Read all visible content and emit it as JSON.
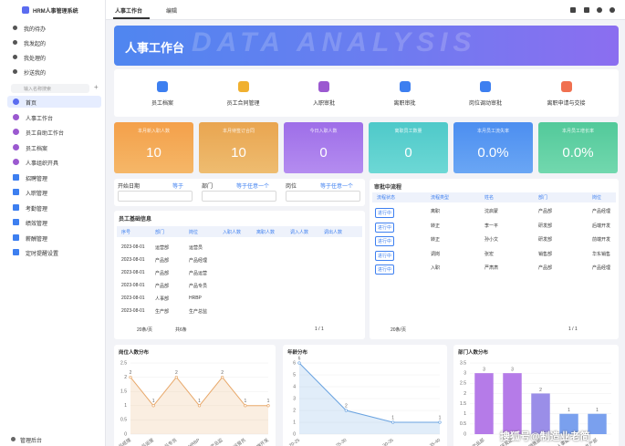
{
  "sidebar": {
    "logo": "HRM人事管理系统",
    "todo": [
      "我的待办",
      "我发起的",
      "我处理的",
      "抄送我的"
    ],
    "search": "输入名称搜索",
    "nav": [
      "首页",
      "人事工作台",
      "员工自助工作台",
      "员工档案",
      "人事组织开具",
      "招聘管理",
      "入职管理",
      "考勤管理",
      "绩效管理",
      "薪酬管理",
      "定时提醒设置"
    ],
    "admin": "管理后台"
  },
  "topbar": {
    "tab": "人事工作台",
    "edit": "编辑"
  },
  "banner": {
    "title": "人事工作台",
    "watermark": "DATA ANALYSIS"
  },
  "shortcuts": [
    "员工档案",
    "员工合同管理",
    "入职审批",
    "离职审批",
    "岗位调动审批",
    "离职申请与交接"
  ],
  "kpis": [
    {
      "label": "本月新入职人数",
      "value": "10"
    },
    {
      "label": "本月待签订合同",
      "value": "10"
    },
    {
      "label": "今日入职人数",
      "value": "0"
    },
    {
      "label": "离职员工数量",
      "value": "0"
    },
    {
      "label": "本月员工流失率",
      "value": "0.0%"
    },
    {
      "label": "本月员工增长率",
      "value": "0.0%"
    }
  ],
  "filters": [
    {
      "label": "开始日期",
      "placeholder": "等于"
    },
    {
      "label": "部门",
      "placeholder": "等于任意一个"
    },
    {
      "label": "岗位",
      "placeholder": "等于任意一个"
    }
  ],
  "employee_table": {
    "title": "员工基础信息",
    "columns": [
      "序号",
      "部门",
      "岗位",
      "入职人数",
      "离职人数",
      "调入人数",
      "调出人数"
    ],
    "rows": [
      [
        "2023-08-01",
        "运营部",
        "运营员"
      ],
      [
        "2023-08-01",
        "产品部",
        "产品经理"
      ],
      [
        "2023-08-01",
        "产品部",
        "产品运营"
      ],
      [
        "2023-08-01",
        "产品部",
        "产品专员"
      ],
      [
        "2023-08-01",
        "人事部",
        "HRBP"
      ],
      [
        "2023-08-01",
        "生产部",
        "生产总监"
      ]
    ],
    "page_size": "20条/页",
    "total": "共6条",
    "page": "1 / 1"
  },
  "approval_table": {
    "title": "审批中流程",
    "columns": [
      "流程状态",
      "流程类型",
      "姓名",
      "部门",
      "岗位"
    ],
    "rows": [
      [
        "进行中",
        "离职",
        "沈启蒙",
        "产品部",
        "产品经理"
      ],
      [
        "进行中",
        "转正",
        "李一平",
        "研发部",
        "后端开发"
      ],
      [
        "进行中",
        "转正",
        "孙小文",
        "研发部",
        "前端开发"
      ],
      [
        "进行中",
        "调岗",
        "张宏",
        "销售部",
        "华东销售"
      ],
      [
        "进行中",
        "入职",
        "严肃肃",
        "产品部",
        "产品经理"
      ]
    ],
    "page_size": "20条/页",
    "page": "1 / 1"
  },
  "chart_data": [
    {
      "type": "line",
      "title": "岗位人数分布",
      "categories": [
        "产品经理",
        "产品运营",
        "产品专员",
        "HRBP",
        "生产总监",
        "运营员",
        "后端开发"
      ],
      "values": [
        2,
        1,
        2,
        1,
        2,
        1,
        1
      ],
      "color": "#e8a86a",
      "area": true,
      "ylim": [
        0,
        2.5
      ],
      "yticks": [
        0,
        0.5,
        1,
        1.5,
        2,
        2.5
      ]
    },
    {
      "type": "line",
      "title": "年龄分布",
      "categories": [
        "20-25",
        "25-30",
        "30-35",
        "35-40"
      ],
      "values": [
        6,
        2,
        1,
        1
      ],
      "color": "#6aa3e0",
      "area": true,
      "ylim": [
        0,
        6
      ],
      "yticks": [
        0,
        1,
        2,
        3,
        4,
        5,
        6
      ]
    },
    {
      "type": "bar",
      "title": "部门人数分布",
      "categories": [
        "产品部",
        "研发部",
        "销售部",
        "人事部",
        "生产部"
      ],
      "values": [
        3,
        3,
        2,
        1,
        1
      ],
      "colors": [
        "#b57be8",
        "#b57be8",
        "#9a8ee8",
        "#7aa0ee",
        "#7aa0ee"
      ],
      "ylim": [
        0,
        3.5
      ],
      "yticks": [
        0,
        0.5,
        1,
        1.5,
        2,
        2.5,
        3,
        3.5
      ]
    }
  ],
  "watermark": "搜狐号@制造业老简"
}
